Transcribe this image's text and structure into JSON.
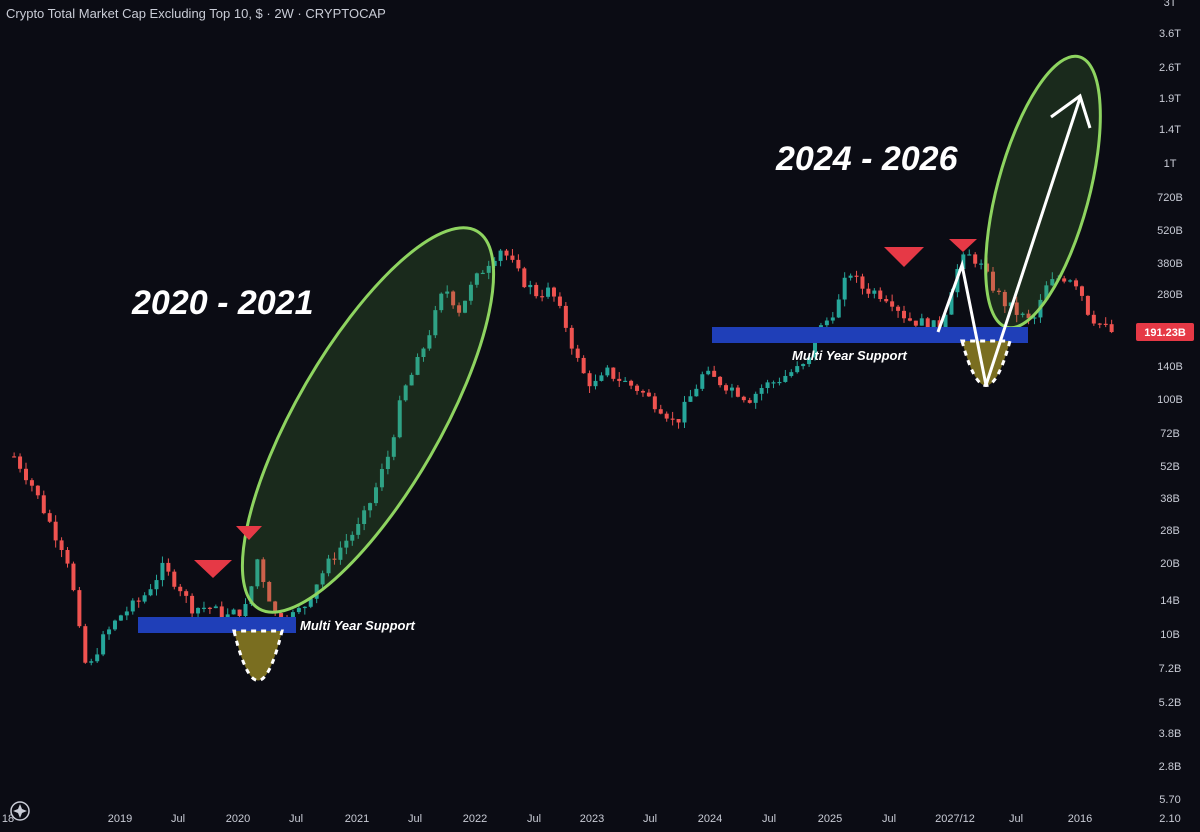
{
  "chart_data": {
    "type": "candlestick",
    "title": "Crypto Total Market Cap Excluding Top 10, $ · 2W · CRYPTOCAP",
    "y_scale": "log",
    "y_ticks": [
      "3T",
      "3.6T",
      "2.6T",
      "1.9T",
      "1.4T",
      "1T",
      "720B",
      "520B",
      "380B",
      "280B",
      "200B",
      "140B",
      "100B",
      "72B",
      "52B",
      "38B",
      "28B",
      "20B",
      "14B",
      "10B",
      "7.2B",
      "5.2B",
      "3.8B",
      "2.8B",
      "5.70",
      "2.10"
    ],
    "x_ticks": [
      "18",
      "2019",
      "Jul",
      "2020",
      "Jul",
      "2021",
      "Jul",
      "2022",
      "Jul",
      "2023",
      "Jul",
      "2024",
      "Jul",
      "2025",
      "Jul",
      "2027/12",
      "Jul",
      "2016"
    ],
    "current_price": "191.23B",
    "annotations": {
      "era_left": "2020 - 2021",
      "era_right": "2024 - 2026",
      "support_left": "Multi Year Support",
      "support_right": "Multi Year Support"
    },
    "price_path": [
      [
        1.0,
        57
      ],
      [
        2.2,
        44
      ],
      [
        3.5,
        30
      ],
      [
        4.0,
        26
      ],
      [
        4.7,
        22
      ],
      [
        5.5,
        12
      ],
      [
        5.8,
        8
      ],
      [
        6.3,
        7
      ],
      [
        7.0,
        9
      ],
      [
        8.5,
        12
      ],
      [
        10.0,
        14
      ],
      [
        11.5,
        19
      ],
      [
        12.7,
        16
      ],
      [
        13.5,
        13
      ],
      [
        14.8,
        13
      ],
      [
        16.0,
        11.8
      ],
      [
        17.5,
        13
      ],
      [
        18.2,
        21
      ],
      [
        18.8,
        16
      ],
      [
        19.5,
        12
      ],
      [
        20.7,
        12
      ],
      [
        21.5,
        13
      ],
      [
        22.5,
        17
      ],
      [
        23.5,
        21
      ],
      [
        24.5,
        25
      ],
      [
        25.5,
        29
      ],
      [
        26.5,
        40
      ],
      [
        27.5,
        58
      ],
      [
        28.5,
        105
      ],
      [
        29.5,
        140
      ],
      [
        30.5,
        200
      ],
      [
        31.5,
        300
      ],
      [
        32.5,
        240
      ],
      [
        33.5,
        310
      ],
      [
        34.5,
        380
      ],
      [
        35.5,
        440
      ],
      [
        36.2,
        380
      ],
      [
        37.0,
        320
      ],
      [
        38.0,
        280
      ],
      [
        39.0,
        290
      ],
      [
        40.0,
        210
      ],
      [
        40.8,
        150
      ],
      [
        41.5,
        120
      ],
      [
        42.3,
        115
      ],
      [
        43.0,
        130
      ],
      [
        44.0,
        120
      ],
      [
        45.0,
        112
      ],
      [
        46.0,
        100
      ],
      [
        47.0,
        90
      ],
      [
        47.8,
        78
      ],
      [
        48.6,
        95
      ],
      [
        49.8,
        128
      ],
      [
        51.0,
        118
      ],
      [
        52.0,
        110
      ],
      [
        53.0,
        100
      ],
      [
        54.0,
        113
      ],
      [
        55.0,
        120
      ],
      [
        56.0,
        130
      ],
      [
        57.2,
        140
      ],
      [
        57.8,
        190
      ],
      [
        58.6,
        218
      ],
      [
        59.4,
        260
      ],
      [
        60.1,
        355
      ],
      [
        60.9,
        300
      ],
      [
        62.0,
        285
      ],
      [
        63.0,
        270
      ],
      [
        64.2,
        220
      ],
      [
        65.4,
        210
      ],
      [
        66.6,
        200
      ],
      [
        67.6,
        340
      ],
      [
        68.4,
        410
      ],
      [
        69.2,
        390
      ],
      [
        70.0,
        320
      ],
      [
        71.0,
        260
      ],
      [
        72.1,
        230
      ],
      [
        73.1,
        210
      ],
      [
        74.1,
        300
      ],
      [
        75.0,
        330
      ],
      [
        76.0,
        330
      ],
      [
        76.6,
        280
      ],
      [
        77.1,
        230
      ],
      [
        78.0,
        205
      ],
      [
        78.8,
        191
      ]
    ]
  }
}
